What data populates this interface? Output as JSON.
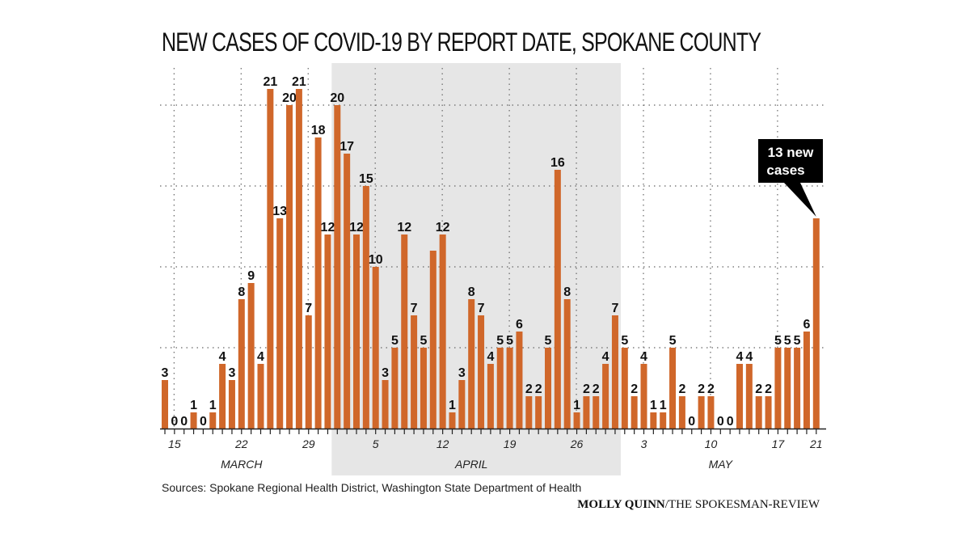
{
  "title": "NEW CASES OF COVID-19 BY REPORT DATE, SPOKANE COUNTY",
  "source": "Sources: Spokane Regional Health District, Washington State Department of Health",
  "credit_name": "MOLLY QUINN",
  "credit_org": "/THE SPOKESMAN-REVIEW",
  "colors": {
    "bar": "#d0672a",
    "shade": "#e6e6e6",
    "callout": "#000000"
  },
  "chart_data": {
    "type": "bar",
    "title": "NEW CASES OF COVID-19 BY REPORT DATE, SPOKANE COUNTY",
    "xlabel": "",
    "ylabel": "",
    "ylim": [
      0,
      21
    ],
    "grid": true,
    "gridlines": [
      5,
      10,
      15,
      20
    ],
    "categories": [
      "Mar 14",
      "Mar 15",
      "Mar 16",
      "Mar 17",
      "Mar 18",
      "Mar 19",
      "Mar 20",
      "Mar 21",
      "Mar 22",
      "Mar 23",
      "Mar 24",
      "Mar 25",
      "Mar 26",
      "Mar 27",
      "Mar 28",
      "Mar 29",
      "Mar 30",
      "Mar 31",
      "Apr 1",
      "Apr 2",
      "Apr 3",
      "Apr 4",
      "Apr 5",
      "Apr 6",
      "Apr 7",
      "Apr 8",
      "Apr 9",
      "Apr 10",
      "Apr 11",
      "Apr 12",
      "Apr 13",
      "Apr 14",
      "Apr 15",
      "Apr 16",
      "Apr 17",
      "Apr 18",
      "Apr 19",
      "Apr 20",
      "Apr 21",
      "Apr 22",
      "Apr 23",
      "Apr 24",
      "Apr 25",
      "Apr 26",
      "Apr 27",
      "Apr 28",
      "Apr 29",
      "Apr 30",
      "May 1",
      "May 2",
      "May 3",
      "May 4",
      "May 5",
      "May 6",
      "May 7",
      "May 8",
      "May 9",
      "May 10",
      "May 11",
      "May 12",
      "May 13",
      "May 14",
      "May 15",
      "May 16",
      "May 17",
      "May 18",
      "May 19",
      "May 20",
      "May 21"
    ],
    "values": [
      3,
      0,
      0,
      1,
      0,
      1,
      4,
      3,
      8,
      9,
      4,
      21,
      13,
      20,
      21,
      7,
      18,
      12,
      20,
      17,
      12,
      15,
      10,
      3,
      5,
      12,
      7,
      5,
      11,
      12,
      1,
      3,
      8,
      7,
      4,
      5,
      5,
      6,
      2,
      2,
      5,
      16,
      8,
      1,
      2,
      2,
      4,
      7,
      5,
      2,
      4,
      1,
      1,
      5,
      2,
      0,
      2,
      2,
      0,
      0,
      4,
      4,
      2,
      2,
      5,
      5,
      5,
      6,
      13
    ],
    "unlabeled_indices": [
      28,
      68
    ],
    "tick_labels": [
      {
        "index": 1,
        "label": "15"
      },
      {
        "index": 8,
        "label": "22"
      },
      {
        "index": 15,
        "label": "29"
      },
      {
        "index": 22,
        "label": "5"
      },
      {
        "index": 29,
        "label": "12"
      },
      {
        "index": 36,
        "label": "19"
      },
      {
        "index": 43,
        "label": "26"
      },
      {
        "index": 50,
        "label": "3"
      },
      {
        "index": 57,
        "label": "10"
      },
      {
        "index": 64,
        "label": "17"
      },
      {
        "index": 68,
        "label": "21"
      }
    ],
    "months": [
      {
        "label": "MARCH",
        "center_index": 8
      },
      {
        "label": "APRIL",
        "center_index": 32
      },
      {
        "label": "MAY",
        "center_index": 58
      }
    ],
    "shaded_range": {
      "label": "April",
      "start_index": 18,
      "end_index": 47
    },
    "annotation": {
      "text_line1": "13 new",
      "text_line2": "cases",
      "index": 68
    }
  }
}
